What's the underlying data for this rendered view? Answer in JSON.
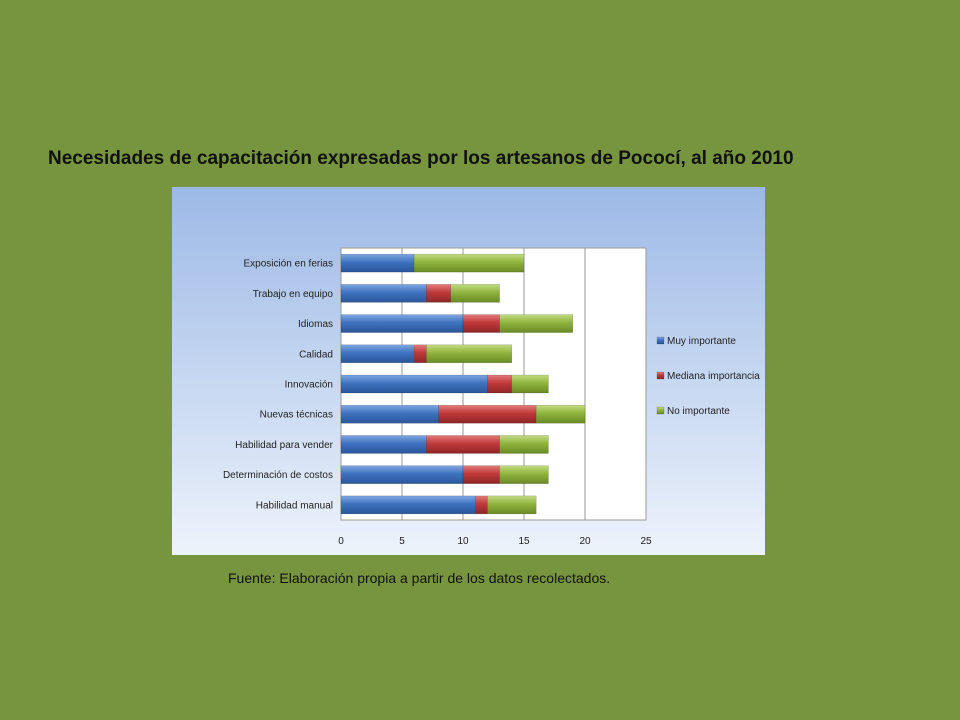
{
  "slide": {
    "title": "Necesidades de capacitación expresadas por los artesanos de Pococí, al año 2010",
    "source": "Fuente: Elaboración propia a partir de los datos recolectados."
  },
  "chart_data": {
    "type": "bar",
    "orientation": "horizontal",
    "stacked": true,
    "categories": [
      "Exposición en ferias",
      "Trabajo en equipo",
      "Idiomas",
      "Calidad",
      "Innovación",
      "Nuevas técnicas",
      "Habilidad para vender",
      "Determinación de costos",
      "Habilidad manual"
    ],
    "series": [
      {
        "name": "Muy importante",
        "color": "#3f73c0",
        "values": [
          6,
          7,
          10,
          6,
          12,
          8,
          7,
          10,
          11
        ]
      },
      {
        "name": "Mediana importancia",
        "color": "#c0393a",
        "values": [
          0,
          2,
          3,
          1,
          2,
          8,
          6,
          3,
          1
        ]
      },
      {
        "name": "No importante",
        "color": "#8fb43d",
        "values": [
          9,
          4,
          6,
          7,
          3,
          4,
          4,
          4,
          4
        ]
      }
    ],
    "xticks": [
      "0",
      "5",
      "10",
      "15",
      "20",
      "25"
    ],
    "xlim": [
      0,
      25
    ],
    "grid": true,
    "legend_position": "right"
  }
}
